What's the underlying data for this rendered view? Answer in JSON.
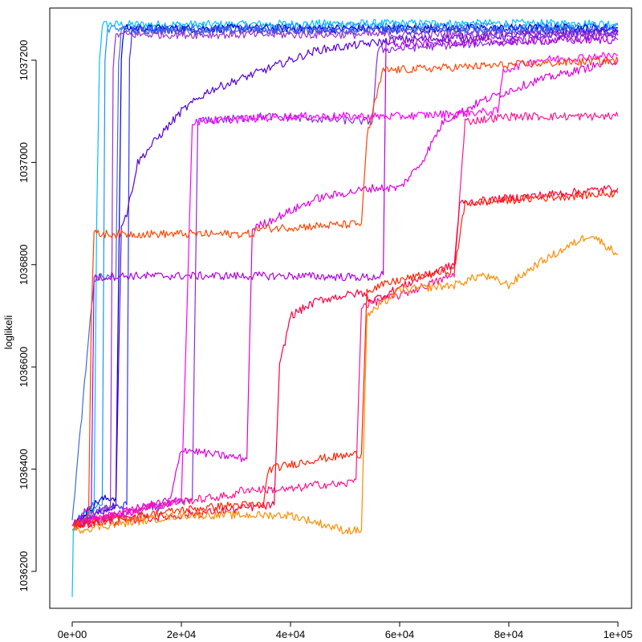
{
  "chart_data": {
    "type": "line",
    "title": "",
    "xlabel": "",
    "ylabel": "loglikeli",
    "xlim": [
      0,
      100000
    ],
    "ylim": [
      1036140,
      1037290
    ],
    "x_ticks": [
      0,
      20000,
      40000,
      60000,
      80000,
      100000
    ],
    "x_tick_labels": [
      "0e+00",
      "2e+04",
      "4e+04",
      "6e+04",
      "8e+04",
      "1e+05"
    ],
    "y_ticks": [
      1036200,
      1036400,
      1036600,
      1036800,
      1037000,
      1037200
    ],
    "y_tick_labels": [
      "1036200",
      "1036400",
      "1036600",
      "1036800",
      "1037000",
      "1037200"
    ],
    "grid": false,
    "legend": "none",
    "series": [
      {
        "color": "#00bfff",
        "points": [
          [
            0,
            1036150
          ],
          [
            200,
            1036280
          ],
          [
            1000,
            1036300
          ],
          [
            2000,
            1036310
          ],
          [
            4000,
            1036320
          ],
          [
            4500,
            1036900
          ],
          [
            5000,
            1037200
          ],
          [
            5500,
            1037270
          ],
          [
            10000,
            1037270
          ],
          [
            30000,
            1037270
          ],
          [
            50000,
            1037272
          ],
          [
            70000,
            1037272
          ],
          [
            100000,
            1037272
          ]
        ]
      },
      {
        "color": "#1e90ff",
        "points": [
          [
            0,
            1036280
          ],
          [
            2000,
            1036310
          ],
          [
            4000,
            1036330
          ],
          [
            5500,
            1036330
          ],
          [
            6000,
            1037200
          ],
          [
            6500,
            1037262
          ],
          [
            30000,
            1037265
          ],
          [
            60000,
            1037266
          ],
          [
            100000,
            1037268
          ]
        ]
      },
      {
        "color": "#0000cd",
        "points": [
          [
            0,
            1036290
          ],
          [
            3000,
            1036320
          ],
          [
            5000,
            1036340
          ],
          [
            8000,
            1036345
          ],
          [
            9000,
            1037200
          ],
          [
            9500,
            1037262
          ],
          [
            50000,
            1037262
          ],
          [
            100000,
            1037263
          ]
        ]
      },
      {
        "color": "#3333ff",
        "points": [
          [
            0,
            1036290
          ],
          [
            5000,
            1036320
          ],
          [
            10000,
            1036330
          ],
          [
            10500,
            1037200
          ],
          [
            11000,
            1037260
          ],
          [
            50000,
            1037258
          ],
          [
            100000,
            1037258
          ]
        ]
      },
      {
        "color": "#4169e1",
        "points": [
          [
            0,
            1036300
          ],
          [
            4000,
            1036770
          ],
          [
            5000,
            1036775
          ],
          [
            8000,
            1036775
          ],
          [
            8500,
            1037200
          ],
          [
            9000,
            1037258
          ],
          [
            100000,
            1037260
          ]
        ]
      },
      {
        "color": "#5500dd",
        "points": [
          [
            0,
            1036290
          ],
          [
            8000,
            1036330
          ],
          [
            9000,
            1036880
          ],
          [
            10000,
            1036900
          ],
          [
            12000,
            1037000
          ],
          [
            15000,
            1037040
          ],
          [
            20000,
            1037100
          ],
          [
            25000,
            1037140
          ],
          [
            35000,
            1037180
          ],
          [
            45000,
            1037220
          ],
          [
            60000,
            1037240
          ],
          [
            100000,
            1037255
          ]
        ]
      },
      {
        "color": "#8a2be2",
        "points": [
          [
            0,
            1036290
          ],
          [
            22000,
            1036340
          ],
          [
            23000,
            1037080
          ],
          [
            35000,
            1037090
          ],
          [
            55000,
            1037080
          ],
          [
            56000,
            1037220
          ],
          [
            70000,
            1037230
          ],
          [
            100000,
            1037248
          ]
        ]
      },
      {
        "color": "#9932cc",
        "points": [
          [
            0,
            1036290
          ],
          [
            7000,
            1036330
          ],
          [
            7500,
            1037180
          ],
          [
            8000,
            1037250
          ],
          [
            60000,
            1037250
          ],
          [
            100000,
            1037250
          ]
        ]
      },
      {
        "color": "#b000e0",
        "points": [
          [
            0,
            1036290
          ],
          [
            3500,
            1036330
          ],
          [
            4000,
            1036775
          ],
          [
            6000,
            1036775
          ],
          [
            7000,
            1036778
          ],
          [
            40000,
            1036778
          ],
          [
            55000,
            1036775
          ],
          [
            57000,
            1036780
          ],
          [
            57500,
            1037230
          ],
          [
            70000,
            1037235
          ],
          [
            100000,
            1037240
          ]
        ]
      },
      {
        "color": "#dd00dd",
        "points": [
          [
            0,
            1036290
          ],
          [
            18000,
            1036340
          ],
          [
            20000,
            1036440
          ],
          [
            25000,
            1036430
          ],
          [
            32000,
            1036420
          ],
          [
            33000,
            1036870
          ],
          [
            45000,
            1036930
          ],
          [
            55000,
            1036950
          ],
          [
            60000,
            1036950
          ],
          [
            64000,
            1037000
          ],
          [
            68000,
            1037080
          ],
          [
            75000,
            1037120
          ],
          [
            85000,
            1037160
          ],
          [
            100000,
            1037200
          ]
        ]
      },
      {
        "color": "#ff00ff",
        "points": [
          [
            0,
            1036290
          ],
          [
            20000,
            1036340
          ],
          [
            21000,
            1036700
          ],
          [
            22000,
            1037080
          ],
          [
            40000,
            1037090
          ],
          [
            60000,
            1037090
          ],
          [
            78000,
            1037100
          ],
          [
            79000,
            1037180
          ],
          [
            85000,
            1037200
          ],
          [
            100000,
            1037210
          ]
        ]
      },
      {
        "color": "#ff1493",
        "points": [
          [
            0,
            1036290
          ],
          [
            15000,
            1036330
          ],
          [
            30000,
            1036350
          ],
          [
            31000,
            1036360
          ],
          [
            40000,
            1036360
          ],
          [
            45000,
            1036370
          ],
          [
            50000,
            1036370
          ],
          [
            52000,
            1036380
          ],
          [
            53000,
            1036720
          ],
          [
            60000,
            1036740
          ],
          [
            70000,
            1036780
          ],
          [
            72000,
            1037080
          ],
          [
            80000,
            1037090
          ],
          [
            100000,
            1037090
          ]
        ]
      },
      {
        "color": "#ff0040",
        "points": [
          [
            0,
            1036290
          ],
          [
            20000,
            1036310
          ],
          [
            37000,
            1036330
          ],
          [
            38000,
            1036600
          ],
          [
            40000,
            1036700
          ],
          [
            45000,
            1036730
          ],
          [
            50000,
            1036740
          ],
          [
            53000,
            1036745
          ],
          [
            55000,
            1036730
          ],
          [
            65000,
            1036780
          ],
          [
            70000,
            1036800
          ],
          [
            71000,
            1036920
          ],
          [
            80000,
            1036930
          ],
          [
            90000,
            1036940
          ],
          [
            100000,
            1036950
          ]
        ]
      },
      {
        "color": "#ff2200",
        "points": [
          [
            0,
            1036290
          ],
          [
            20000,
            1036320
          ],
          [
            30000,
            1036330
          ],
          [
            35000,
            1036330
          ],
          [
            36000,
            1036400
          ],
          [
            45000,
            1036420
          ],
          [
            53000,
            1036430
          ],
          [
            54000,
            1036750
          ],
          [
            60000,
            1036770
          ],
          [
            70000,
            1036790
          ],
          [
            72000,
            1036920
          ],
          [
            85000,
            1036930
          ],
          [
            100000,
            1036940
          ]
        ]
      },
      {
        "color": "#ff4500",
        "points": [
          [
            0,
            1036290
          ],
          [
            3000,
            1036310
          ],
          [
            3500,
            1036700
          ],
          [
            4000,
            1036860
          ],
          [
            10000,
            1036860
          ],
          [
            30000,
            1036860
          ],
          [
            33000,
            1036860
          ],
          [
            34000,
            1036870
          ],
          [
            53000,
            1036880
          ],
          [
            54000,
            1037050
          ],
          [
            56000,
            1037140
          ],
          [
            57000,
            1037180
          ],
          [
            100000,
            1037200
          ]
        ]
      },
      {
        "color": "#ff8c00",
        "points": [
          [
            0,
            1036280
          ],
          [
            20000,
            1036310
          ],
          [
            40000,
            1036310
          ],
          [
            50000,
            1036280
          ],
          [
            53000,
            1036280
          ],
          [
            54000,
            1036700
          ],
          [
            60000,
            1036750
          ],
          [
            70000,
            1036760
          ],
          [
            75000,
            1036780
          ],
          [
            80000,
            1036760
          ],
          [
            85000,
            1036800
          ],
          [
            90000,
            1036830
          ],
          [
            95000,
            1036860
          ],
          [
            100000,
            1036820
          ]
        ]
      }
    ]
  }
}
